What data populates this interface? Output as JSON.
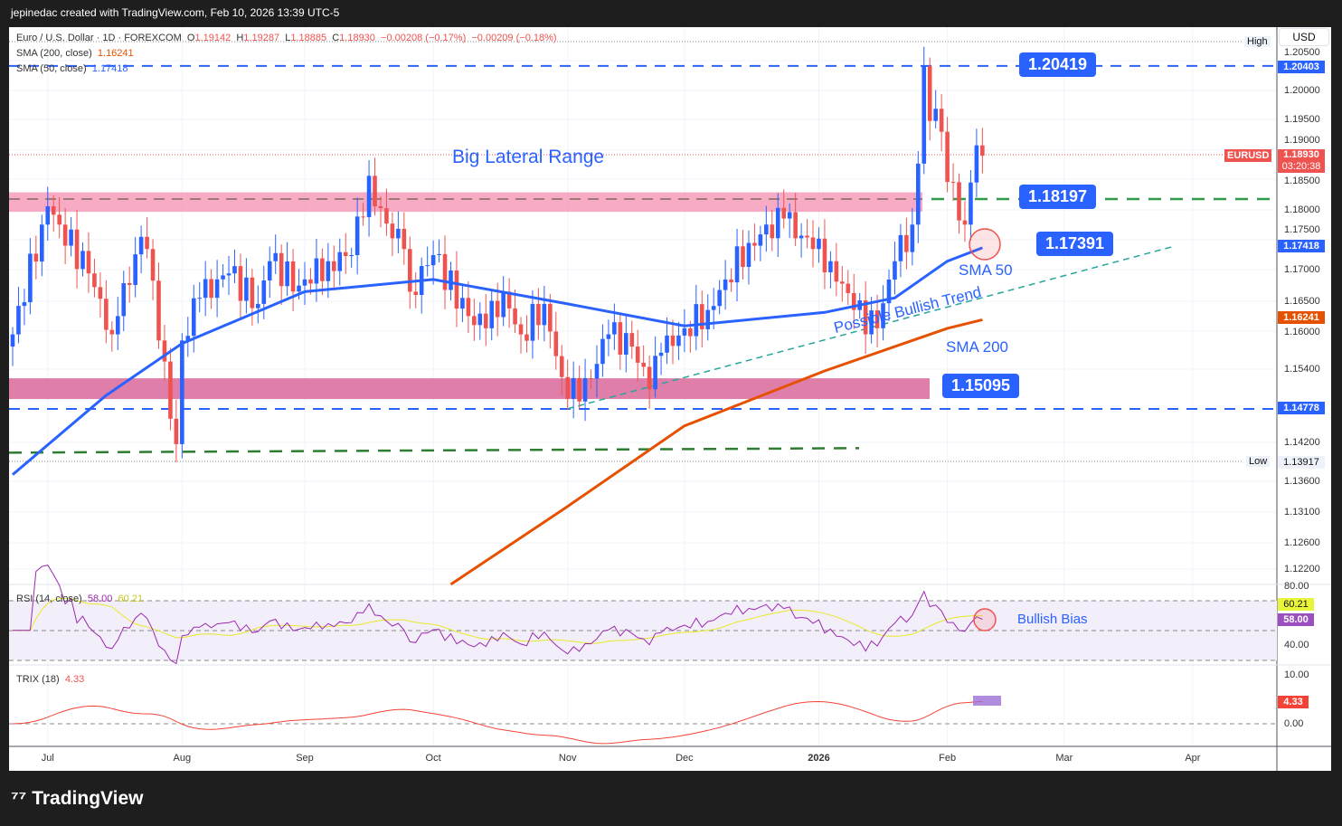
{
  "header": {
    "credit": "jepinedac created with TradingView.com, Feb 10, 2026 13:39 UTC-5"
  },
  "legend": {
    "symbol": "Euro / U.S. Dollar · 1D · FOREXCOM",
    "o_label": "O",
    "o": "1.19142",
    "h_label": "H",
    "h": "1.19287",
    "l_label": "L",
    "l": "1.18885",
    "c_label": "C",
    "c": "1.18930",
    "chg": "−0.00208 (−0.17%)",
    "chg2": "−0.00209 (−0.18%)",
    "sma200_label": "SMA (200, close)",
    "sma200": "1.16241",
    "sma50_label": "SMA (50, close)",
    "sma50": "1.17418",
    "rsi_label": "RSI (14, close)",
    "rsi": "58.00",
    "rsi_ma": "60.21",
    "trix_label": "TRIX (18)",
    "trix": "4.33"
  },
  "axis": {
    "currency": "USD",
    "ticks": [
      "1.20500",
      "1.20000",
      "1.19500",
      "1.19000",
      "1.18500",
      "1.18000",
      "1.17500",
      "1.17000",
      "1.16500",
      "1.16000",
      "1.15400",
      "1.14200",
      "1.13600",
      "1.13100",
      "1.12600",
      "1.12200"
    ],
    "tags": {
      "high_label": "High",
      "high": "1.20403",
      "symbol": "EURUSD",
      "last": "1.18930",
      "countdown": "03:20:38",
      "sma50": "1.17418",
      "sma200": "1.16241",
      "level": "1.14778",
      "low_label": "Low",
      "low": "1.13917"
    },
    "rsi_ticks": [
      "80.00",
      "40.00"
    ],
    "rsi_tags": [
      "60.21",
      "58.00"
    ],
    "trix_ticks": [
      "10.00",
      "0.00"
    ],
    "trix_tag": "4.33",
    "time": [
      [
        "Jul",
        "2025-07-01"
      ],
      [
        "Aug",
        "2025-08-01"
      ],
      [
        "Sep",
        "2025-09-01"
      ],
      [
        "Oct",
        "2025-10-01"
      ],
      [
        "Nov",
        "2025-11-03"
      ],
      [
        "Dec",
        "2025-12-01"
      ],
      [
        "2026",
        "2026-01-01"
      ],
      [
        "Feb",
        "2026-02-02"
      ],
      [
        "Mar",
        "2026-03-02"
      ],
      [
        "Apr",
        "2026-04-01"
      ]
    ]
  },
  "annotations": {
    "range": "Big Lateral Range",
    "l1": "1.20419",
    "l2": "1.18197",
    "l3": "1.17391",
    "l4": "1.15095",
    "sma50": "SMA 50",
    "sma200": "SMA 200",
    "trend": "Possible Bullish Trend",
    "bias": "Bullish Bias"
  },
  "footer": {
    "brand": "TradingView"
  },
  "colors": {
    "up": "#2962ff",
    "down": "#ef5350",
    "sma50": "#2962ff",
    "sma200": "#e65100",
    "zone": "#f48fb1",
    "rsi": "#9c27b0",
    "rsi_ma": "#e8e82a",
    "trix": "#f44336"
  },
  "chart_data": {
    "type": "candlestick",
    "title": "Euro / U.S. Dollar 1D FOREXCOM",
    "ylim": [
      1.118,
      1.207
    ],
    "start": "2025-06-23",
    "closes": [
      [
        "2025-06-23",
        1.16
      ],
      [
        "2025-06-30",
        1.178
      ],
      [
        "2025-07-01",
        1.181
      ],
      [
        "2025-07-03",
        1.178
      ],
      [
        "2025-07-10",
        1.17
      ],
      [
        "2025-07-16",
        1.16
      ],
      [
        "2025-07-17",
        1.163
      ],
      [
        "2025-07-23",
        1.176
      ],
      [
        "2025-07-24",
        1.174
      ],
      [
        "2025-07-28",
        1.159
      ],
      [
        "2025-07-31",
        1.142
      ],
      [
        "2025-08-01",
        1.159
      ],
      [
        "2025-08-06",
        1.166
      ],
      [
        "2025-08-13",
        1.17
      ],
      [
        "2025-08-20",
        1.165
      ],
      [
        "2025-08-22",
        1.172
      ],
      [
        "2025-08-29",
        1.168
      ],
      [
        "2025-09-05",
        1.172
      ],
      [
        "2025-09-11",
        1.173
      ],
      [
        "2025-09-16",
        1.186
      ],
      [
        "2025-09-17",
        1.181
      ],
      [
        "2025-09-24",
        1.174
      ],
      [
        "2025-09-25",
        1.167
      ],
      [
        "2025-10-01",
        1.173
      ],
      [
        "2025-10-09",
        1.163
      ],
      [
        "2025-10-14",
        1.161
      ],
      [
        "2025-10-17",
        1.167
      ],
      [
        "2025-10-22",
        1.16
      ],
      [
        "2025-10-28",
        1.165
      ],
      [
        "2025-10-31",
        1.153
      ],
      [
        "2025-11-05",
        1.149
      ],
      [
        "2025-11-12",
        1.16
      ],
      [
        "2025-11-18",
        1.158
      ],
      [
        "2025-11-21",
        1.151
      ],
      [
        "2025-11-25",
        1.157
      ],
      [
        "2025-12-01",
        1.161
      ],
      [
        "2025-12-05",
        1.164
      ],
      [
        "2025-12-10",
        1.169
      ],
      [
        "2025-12-16",
        1.175
      ],
      [
        "2025-12-24",
        1.179
      ],
      [
        "2025-12-31",
        1.174
      ],
      [
        "2026-01-05",
        1.172
      ],
      [
        "2026-01-09",
        1.164
      ],
      [
        "2026-01-15",
        1.161
      ],
      [
        "2026-01-20",
        1.172
      ],
      [
        "2026-01-23",
        1.178
      ],
      [
        "2026-01-26",
        1.188
      ],
      [
        "2026-01-27",
        1.204
      ],
      [
        "2026-01-28",
        1.195
      ],
      [
        "2026-01-29",
        1.197
      ],
      [
        "2026-02-02",
        1.185
      ],
      [
        "2026-02-05",
        1.178
      ],
      [
        "2026-02-09",
        1.191
      ],
      [
        "2026-02-10",
        1.1893
      ]
    ],
    "sma50": [
      [
        "2025-06-23",
        1.137
      ],
      [
        "2025-07-15",
        1.15
      ],
      [
        "2025-08-01",
        1.1585
      ],
      [
        "2025-09-01",
        1.167
      ],
      [
        "2025-10-01",
        1.169
      ],
      [
        "2025-11-03",
        1.165
      ],
      [
        "2025-12-01",
        1.1614
      ],
      [
        "2026-01-02",
        1.1636
      ],
      [
        "2026-01-20",
        1.166
      ],
      [
        "2026-02-02",
        1.172
      ],
      [
        "2026-02-10",
        1.1742
      ]
    ],
    "sma200": [
      [
        "2025-10-06",
        1.119
      ],
      [
        "2025-11-03",
        1.1318
      ],
      [
        "2025-12-01",
        1.145
      ],
      [
        "2026-01-02",
        1.154
      ],
      [
        "2026-02-02",
        1.161
      ],
      [
        "2026-02-10",
        1.1624
      ]
    ],
    "levels": {
      "high_line": 1.20403,
      "low_line": 1.14778,
      "upper_zone": [
        1.1801,
        1.1833
      ],
      "lower_zone": [
        1.1494,
        1.1528
      ],
      "resistance": 1.1822,
      "support": 1.1406,
      "trend": [
        [
          "2025-11-03",
          1.1478
        ],
        [
          "2026-03-27",
          1.1745
        ]
      ]
    }
  }
}
